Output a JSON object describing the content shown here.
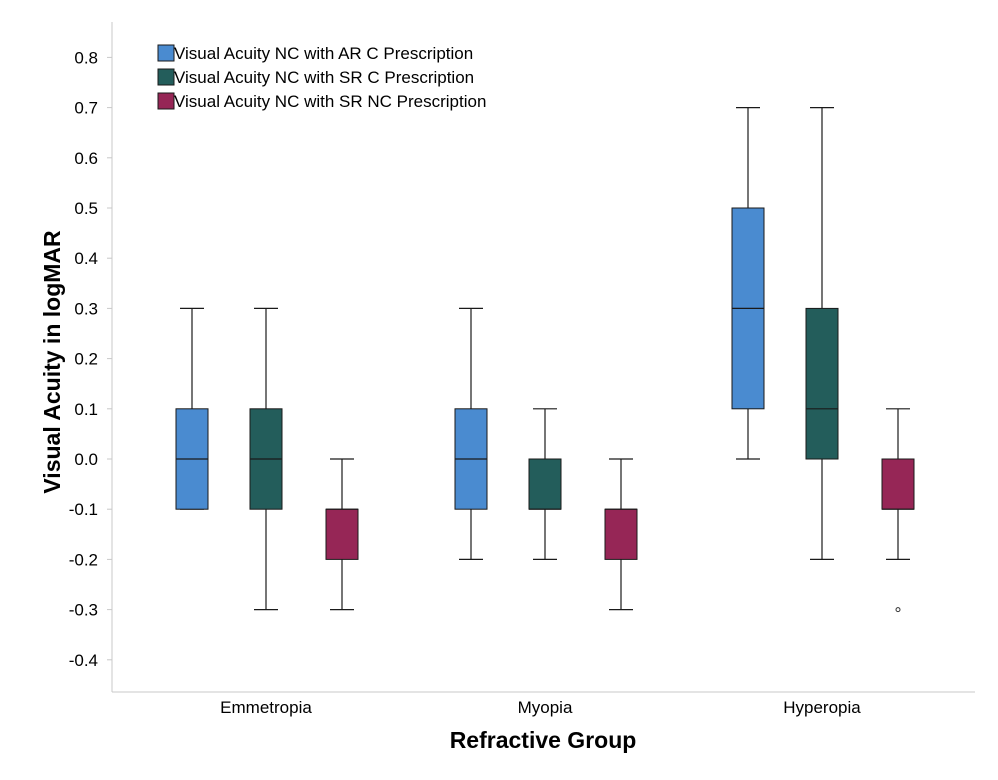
{
  "chart_data": {
    "type": "boxplot",
    "title": "",
    "xlabel": "Refractive Group",
    "ylabel": "Visual Acuity in logMAR",
    "ylim": [
      -0.45,
      0.87
    ],
    "yticks": [
      -0.4,
      -0.3,
      -0.2,
      -0.1,
      0.0,
      0.1,
      0.2,
      0.3,
      0.4,
      0.5,
      0.6,
      0.7,
      0.8
    ],
    "ytick_labels": [
      "-0.4",
      "-0.3",
      "-0.2",
      "-0.1",
      "0.0",
      "0.1",
      "0.2",
      "0.3",
      "0.4",
      "0.5",
      "0.6",
      "0.7",
      "0.8"
    ],
    "categories": [
      "Emmetropia",
      "Myopia",
      "Hyperopia"
    ],
    "grid": false,
    "legend_position": "top-left",
    "series": [
      {
        "name": "Visual Acuity NC with AR C Prescription",
        "color": "#4a8bd0",
        "boxes": [
          {
            "whisker_low": -0.1,
            "q1": -0.1,
            "median": 0.0,
            "q3": 0.1,
            "whisker_high": 0.3,
            "outliers": []
          },
          {
            "whisker_low": -0.2,
            "q1": -0.1,
            "median": 0.0,
            "q3": 0.1,
            "whisker_high": 0.3,
            "outliers": []
          },
          {
            "whisker_low": 0.0,
            "q1": 0.1,
            "median": 0.3,
            "q3": 0.5,
            "whisker_high": 0.7,
            "outliers": []
          }
        ]
      },
      {
        "name": "Visual Acuity NC with SR C Prescription",
        "color": "#235d5b",
        "boxes": [
          {
            "whisker_low": -0.3,
            "q1": -0.1,
            "median": 0.0,
            "q3": 0.1,
            "whisker_high": 0.3,
            "outliers": []
          },
          {
            "whisker_low": -0.2,
            "q1": -0.1,
            "median": -0.1,
            "q3": 0.0,
            "whisker_high": 0.1,
            "outliers": []
          },
          {
            "whisker_low": -0.2,
            "q1": 0.0,
            "median": 0.1,
            "q3": 0.3,
            "whisker_high": 0.7,
            "outliers": []
          }
        ]
      },
      {
        "name": "Visual Acuity NC with SR NC Prescription",
        "color": "#962656",
        "boxes": [
          {
            "whisker_low": -0.3,
            "q1": -0.2,
            "median": -0.1,
            "q3": -0.1,
            "whisker_high": 0.0,
            "outliers": []
          },
          {
            "whisker_low": -0.3,
            "q1": -0.2,
            "median": -0.1,
            "q3": -0.1,
            "whisker_high": 0.0,
            "outliers": []
          },
          {
            "whisker_low": -0.2,
            "q1": -0.1,
            "median": -0.1,
            "q3": 0.0,
            "whisker_high": 0.1,
            "outliers": [
              -0.3
            ]
          }
        ]
      }
    ]
  }
}
